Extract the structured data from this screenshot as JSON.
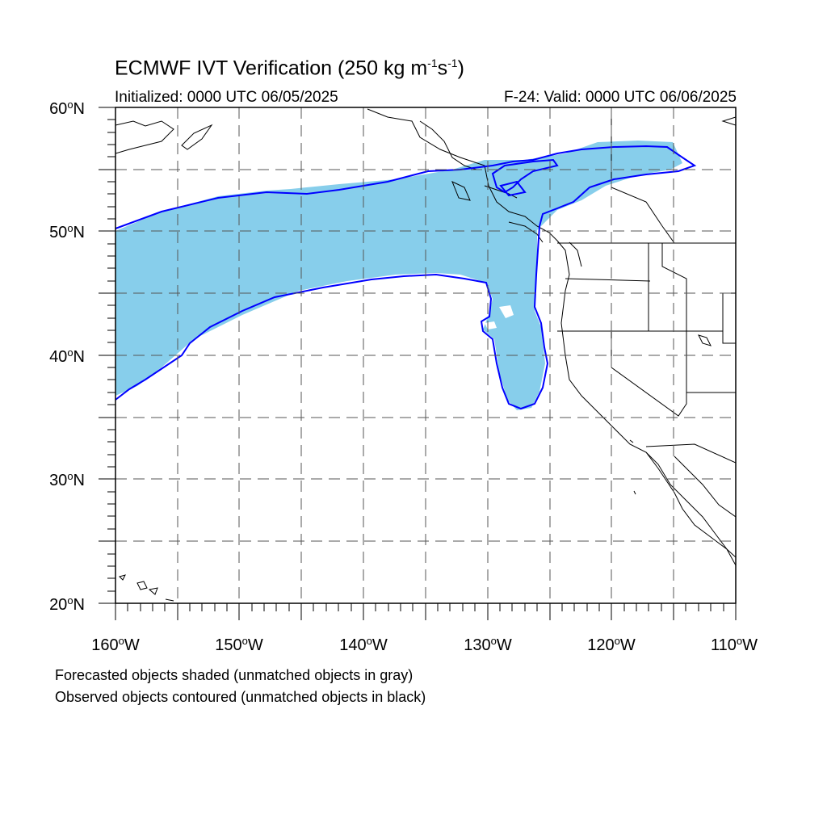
{
  "title": {
    "main": "ECMWF IVT Verification (250 kg m",
    "exp1": "-1",
    "s": "s",
    "exp2": "-1",
    "close": ")"
  },
  "subtitle": {
    "initialized": "Initialized: 0000 UTC 06/05/2025",
    "valid": "F-24: Valid: 0000 UTC 06/06/2025"
  },
  "lat_labels": [
    {
      "deg": "60",
      "hem": "N"
    },
    {
      "deg": "50",
      "hem": "N"
    },
    {
      "deg": "40",
      "hem": "N"
    },
    {
      "deg": "30",
      "hem": "N"
    },
    {
      "deg": "20",
      "hem": "N"
    }
  ],
  "lon_labels": [
    {
      "deg": "160",
      "hem": "W"
    },
    {
      "deg": "150",
      "hem": "W"
    },
    {
      "deg": "140",
      "hem": "W"
    },
    {
      "deg": "130",
      "hem": "W"
    },
    {
      "deg": "120",
      "hem": "W"
    },
    {
      "deg": "110",
      "hem": "W"
    }
  ],
  "map_extent": {
    "lon_min": -160,
    "lon_max": -110,
    "lat_min": 20,
    "lat_max": 60
  },
  "colors": {
    "forecast_fill": "#87ceeb",
    "observed_contour": "#0000ff",
    "grid": "#555555",
    "coastline": "#000000"
  },
  "legend_notes": [
    "Forecasted objects shaded (unmatched objects in gray)",
    "Observed objects contoured (unmatched objects in black)"
  ]
}
